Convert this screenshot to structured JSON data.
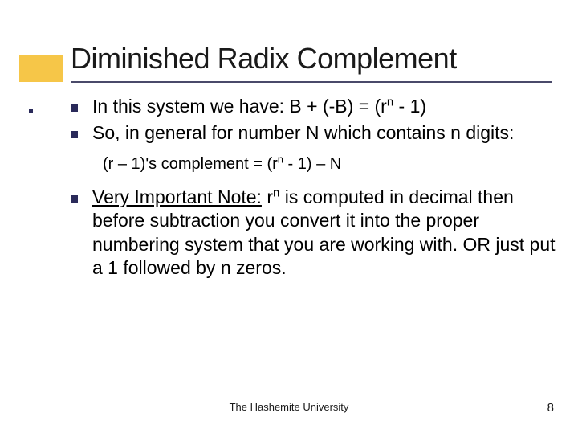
{
  "title": "Diminished Radix Complement",
  "bullets": {
    "b1_pre": "In this system we have: B + (-B) = (r",
    "b1_sup": "n",
    "b1_post": " - 1)",
    "b2": "So, in general for number N which contains n digits:",
    "formula_pre": "(r – 1)'s complement = (r",
    "formula_sup": "n",
    "formula_post": " - 1) – N",
    "note_lead": "Very Important Note:",
    "note_r": " r",
    "note_sup": "n",
    "note_rest": " is computed in decimal then before subtraction you convert it into the proper numbering system that you are working with. OR just put a 1 followed by n zeros."
  },
  "footer": "The Hashemite University",
  "page": "8",
  "colors": {
    "accent": "#f6c648",
    "bullet": "#2a2a5a",
    "underline": "#4a4a6a"
  }
}
